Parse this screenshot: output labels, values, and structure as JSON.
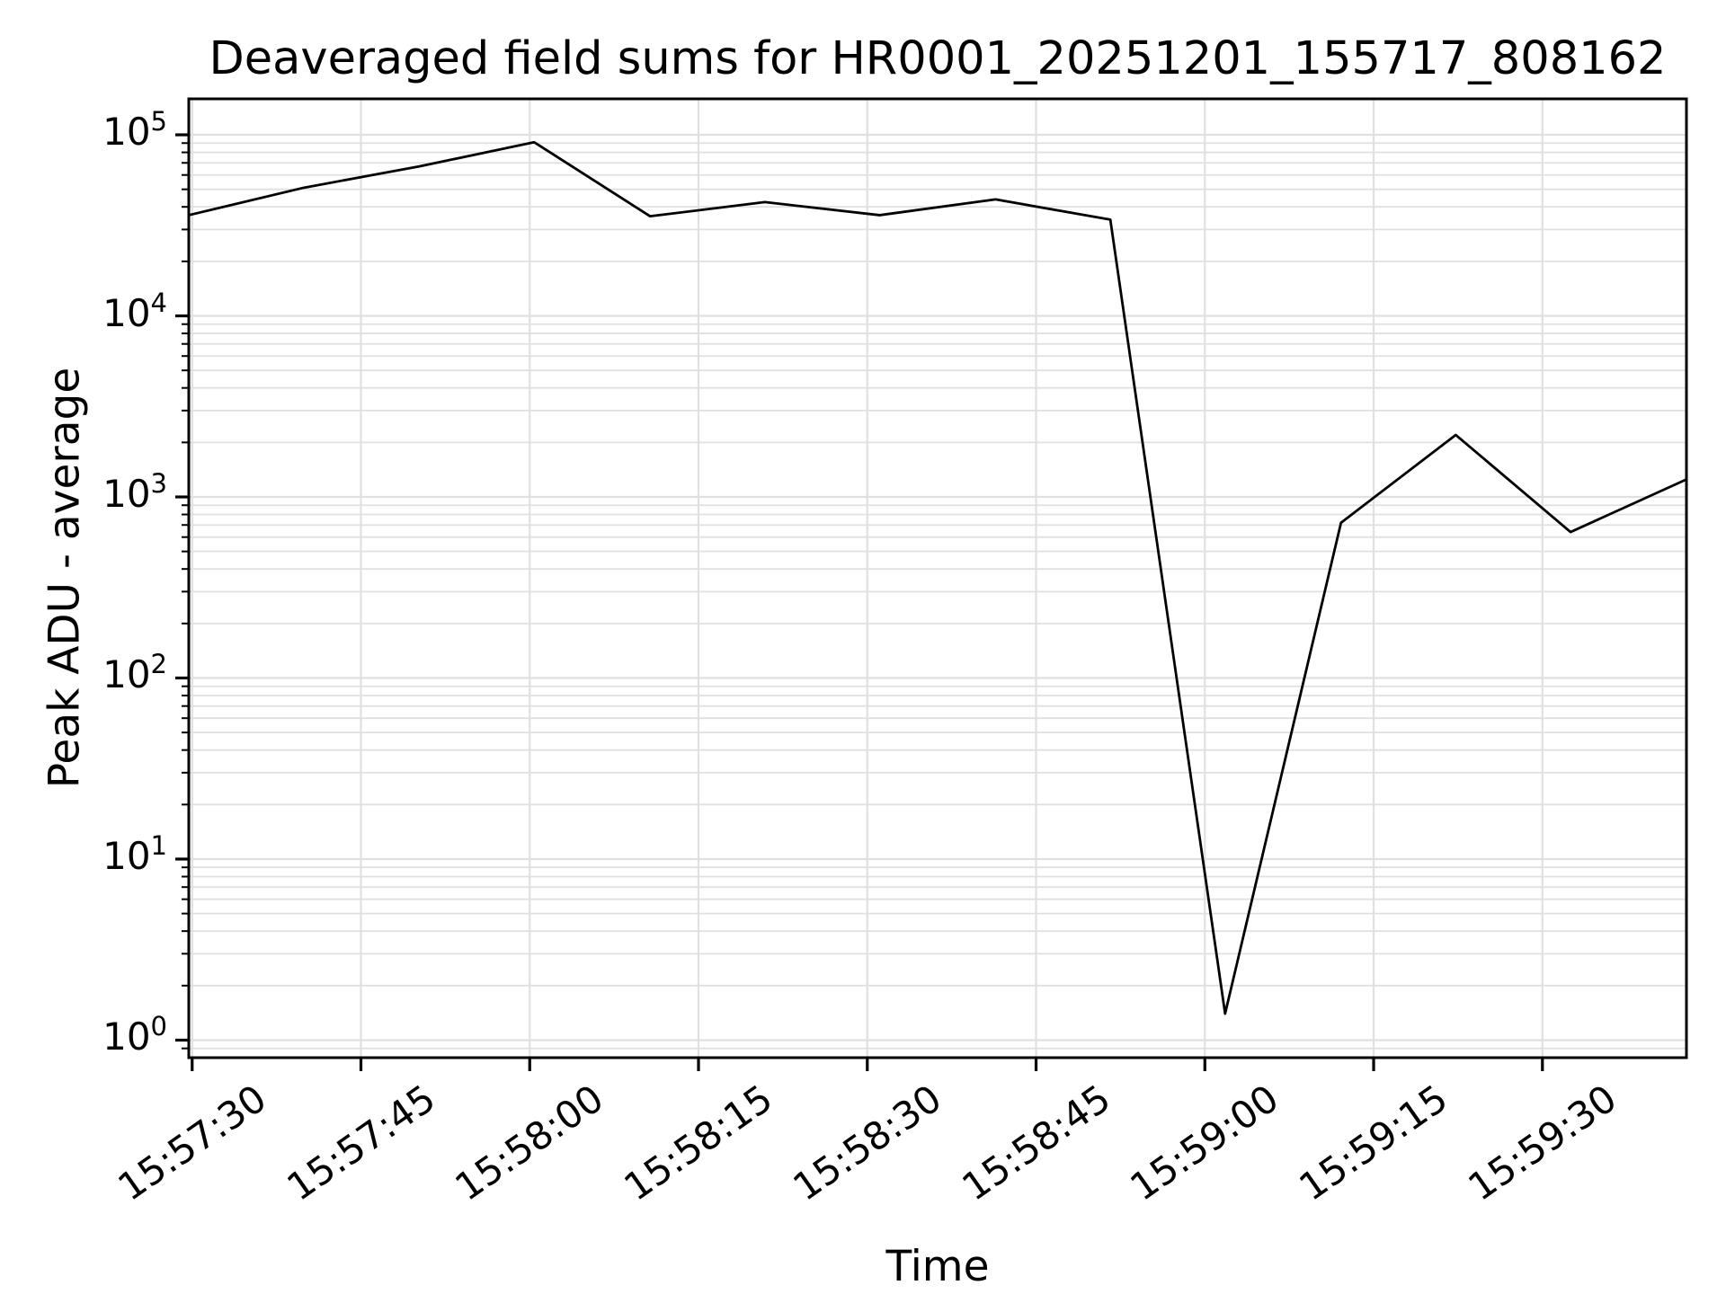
{
  "chart_data": {
    "type": "line",
    "title": "Deaveraged field sums for HR0001_20251201_155717_808162",
    "xlabel": "Time",
    "ylabel": "Peak ADU - average",
    "yscale": "log",
    "grid": {
      "major": true,
      "minor": true,
      "color": "#e0e0e0"
    },
    "legend_position": "none",
    "background_color": "#ffffff",
    "axis_color": "#000000",
    "xlim_s": [
      0,
      133.1
    ],
    "ylim": [
      0.8,
      158000
    ],
    "x_tick_labels": [
      "15:57:30",
      "15:57:45",
      "15:58:00",
      "15:58:15",
      "15:58:30",
      "15:58:45",
      "15:59:00",
      "15:59:15",
      "15:59:30"
    ],
    "x_tick_offsets_s": [
      0.3,
      15.3,
      30.3,
      45.3,
      60.3,
      75.3,
      90.3,
      105.3,
      120.3
    ],
    "y_tick_values": [
      1,
      10,
      100,
      1000,
      10000,
      100000
    ],
    "series": [
      {
        "name": "peak-adu-average",
        "color": "#000000",
        "x_times": [
          "15:57:30",
          "15:57:40",
          "15:57:50",
          "15:58:01",
          "15:58:11",
          "15:58:21",
          "15:58:31",
          "15:58:42",
          "15:58:52",
          "15:59:02",
          "15:59:12",
          "15:59:23",
          "15:59:33",
          "15:59:43"
        ],
        "x_offsets_s": [
          0,
          10.2,
          20.5,
          30.7,
          41.0,
          51.2,
          61.4,
          71.7,
          81.9,
          92.1,
          102.4,
          112.6,
          122.8,
          133.1
        ],
        "values": [
          36000,
          51000,
          67000,
          91000,
          35500,
          42500,
          36000,
          44000,
          34000,
          1.4,
          720,
          2200,
          640,
          1250
        ]
      }
    ]
  }
}
